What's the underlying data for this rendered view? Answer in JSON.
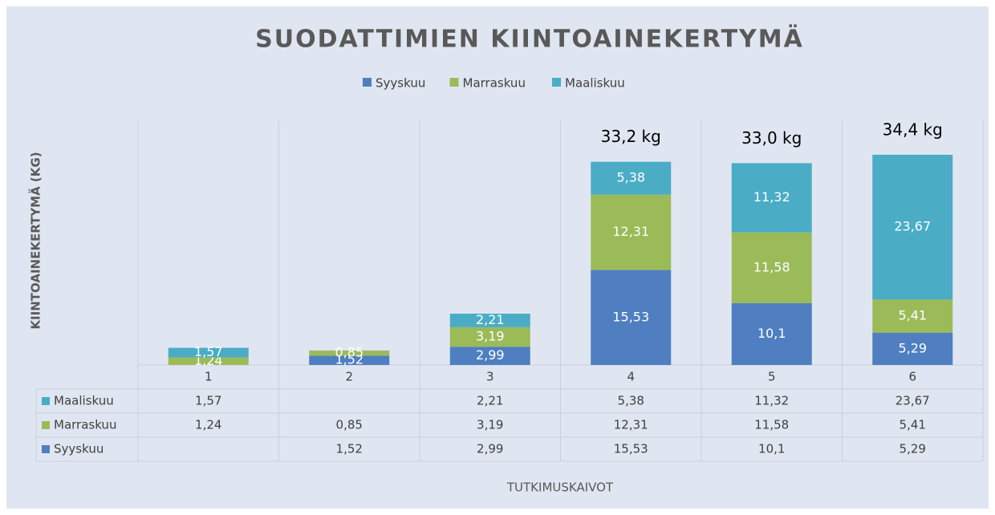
{
  "chart_data": {
    "type": "stacked_bar",
    "title": "SUODATTIMIEN KIINTOAINEKERTYMÄ",
    "y_label": "KIINTOAINEKERTYMÄ (KG)",
    "x_label": "TUTKIMUSKAIVOT",
    "categories": [
      "1",
      "2",
      "3",
      "4",
      "5",
      "6"
    ],
    "series": [
      {
        "name": "Syyskuu",
        "color": "#4f7fc1",
        "values": [
          null,
          1.52,
          2.99,
          15.53,
          10.1,
          5.29
        ],
        "value_labels": [
          null,
          "1,52",
          "2,99",
          "15,53",
          "10,1",
          "5,29"
        ]
      },
      {
        "name": "Marraskuu",
        "color": "#9bbb59",
        "values": [
          1.24,
          0.85,
          3.19,
          12.31,
          11.58,
          5.41
        ],
        "value_labels": [
          "1,24",
          "0,85",
          "3,19",
          "12,31",
          "11,58",
          "5,41"
        ]
      },
      {
        "name": "Maaliskuu",
        "color": "#4bacc6",
        "values": [
          1.57,
          null,
          2.21,
          5.38,
          11.32,
          23.67
        ],
        "value_labels": [
          "1,57",
          null,
          "2,21",
          "5,38",
          "11,32",
          "23,67"
        ]
      }
    ],
    "total_labels": [
      null,
      null,
      null,
      "33,2 kg",
      "33,0 kg",
      "34,4 kg"
    ],
    "ylim": [
      0,
      40
    ],
    "legend": "top"
  }
}
